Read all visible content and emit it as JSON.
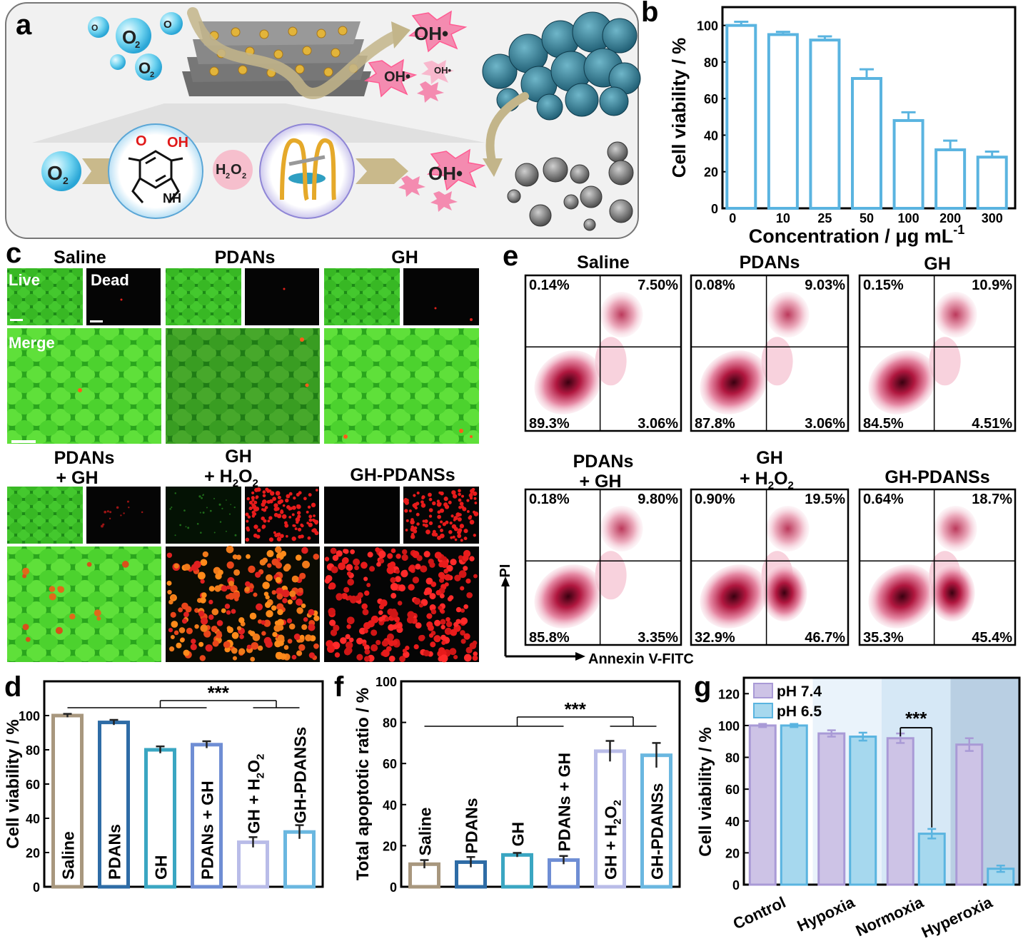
{
  "panels": {
    "a": {
      "letter": "a",
      "labels": {
        "o2": "O",
        "o2_sub": "2",
        "oh": "OH•",
        "h2o2_h": "H",
        "h2o2_sub1": "2",
        "h2o2_o": "O",
        "h2o2_sub2": "2",
        "oh_group": "OH",
        "o_atom": "O",
        "nh": "NH"
      }
    },
    "c": {
      "letter": "c",
      "groups": [
        "Saline",
        "PDANs",
        "GH",
        "PDANs",
        "+ GH",
        "GH",
        "+ H",
        "2",
        "O",
        "2",
        "GH-PDANSs"
      ],
      "top_groups": [
        "Saline",
        "PDANs",
        "GH"
      ],
      "bottom_groups_line1": [
        "PDANs",
        "GH",
        "GH-PDANSs"
      ],
      "bottom_groups_line2": [
        "+ GH",
        "+ H",
        ""
      ],
      "live_label": "Live",
      "dead_label": "Dead",
      "merge_label": "Merge"
    },
    "e": {
      "letter": "e",
      "plots": [
        {
          "title": "Saline",
          "title2": "",
          "q": [
            "0.14%",
            "7.50%",
            "89.3%",
            "3.06%"
          ]
        },
        {
          "title": "PDANs",
          "title2": "",
          "q": [
            "0.08%",
            "9.03%",
            "87.8%",
            "3.06%"
          ]
        },
        {
          "title": "GH",
          "title2": "",
          "q": [
            "0.15%",
            "10.9%",
            "84.5%",
            "4.51%"
          ]
        },
        {
          "title": "PDANs",
          "title2": "+ GH",
          "q": [
            "0.18%",
            "9.80%",
            "85.8%",
            "3.35%"
          ]
        },
        {
          "title": "GH",
          "title2": "+ H",
          "q": [
            "0.90%",
            "19.5%",
            "32.9%",
            "46.7%"
          ]
        },
        {
          "title": "GH-PDANSs",
          "title2": "",
          "q": [
            "0.64%",
            "18.7%",
            "35.3%",
            "45.4%"
          ]
        }
      ],
      "axis_y": "PI",
      "axis_x": "Annexin V-FITC"
    }
  },
  "chart_data": [
    {
      "panel": "b",
      "type": "bar",
      "letter": "b",
      "categories": [
        "0",
        "10",
        "25",
        "50",
        "100",
        "200",
        "300"
      ],
      "values": [
        100,
        95,
        92,
        71,
        48,
        32,
        28
      ],
      "errors": [
        2,
        1.5,
        2,
        5,
        4.5,
        5,
        3
      ],
      "xlabel": "Concentration / μg mL",
      "xlabel_sup": "-1",
      "ylabel": "Cell viability / %",
      "ylim": [
        0,
        110
      ],
      "yticks": [
        "0",
        "20",
        "40",
        "60",
        "80",
        "100"
      ],
      "color": "#5ab4e0"
    },
    {
      "panel": "d",
      "type": "bar",
      "letter": "d",
      "categories": [
        "Saline",
        "PDANs",
        "GH",
        "PDANs + GH",
        "GH + H2O2",
        "GH-PDANSs"
      ],
      "labels": [
        "Saline",
        "PDANs",
        "GH",
        "PDANs + GH",
        "GH + H",
        "GH-PDANSs"
      ],
      "values": [
        100,
        96,
        80,
        83,
        26,
        32
      ],
      "errors": [
        1,
        1.5,
        2,
        2,
        3,
        4
      ],
      "colors": [
        "#a8977e",
        "#2e6ca6",
        "#3aa6c2",
        "#6f8ed4",
        "#b9bce8",
        "#6ab7e0"
      ],
      "ylabel": "Cell viability / %",
      "ylim": [
        0,
        120
      ],
      "yticks": [
        "0",
        "20",
        "40",
        "60",
        "80",
        "100"
      ],
      "significance": "***"
    },
    {
      "panel": "f",
      "type": "bar",
      "letter": "f",
      "categories": [
        "Saline",
        "PDANs",
        "GH",
        "PDANs + GH",
        "GH + H2O2",
        "GH-PDANSs"
      ],
      "labels": [
        "Saline",
        "PDANs",
        "GH",
        "PDANs + GH",
        "GH + H",
        "GH-PDANSs"
      ],
      "values": [
        11,
        12,
        15.5,
        13,
        66,
        64
      ],
      "errors": [
        2,
        2.5,
        1,
        2,
        5,
        6
      ],
      "colors": [
        "#a8977e",
        "#2e6ca6",
        "#3aa6c2",
        "#6f8ed4",
        "#b9bce8",
        "#6ab7e0"
      ],
      "ylabel": "Total apoptotic ratio / %",
      "ylim": [
        0,
        100
      ],
      "yticks": [
        "0",
        "20",
        "40",
        "60",
        "80",
        "100"
      ],
      "significance": "***"
    },
    {
      "panel": "g",
      "type": "bar",
      "letter": "g",
      "categories": [
        "Control",
        "Hypoxia",
        "Normoxia",
        "Hyperoxia"
      ],
      "series": [
        {
          "name": "pH 7.4",
          "values": [
            100,
            95,
            92,
            88
          ],
          "errors": [
            1,
            2,
            3,
            4
          ],
          "color": "#cdc3e6",
          "stroke": "#a99ad6"
        },
        {
          "name": "pH 6.5",
          "values": [
            100,
            93,
            32,
            10
          ],
          "errors": [
            1,
            2.5,
            3,
            2
          ],
          "color": "#a6d8ee",
          "stroke": "#5ab4e0"
        }
      ],
      "ylabel": "Cell viability / %",
      "ylim": [
        0,
        130
      ],
      "yticks": [
        "0",
        "20",
        "40",
        "60",
        "80",
        "100",
        "120"
      ],
      "background_colors": [
        "#ffffff",
        "#eaf3fb",
        "#d6e8f6",
        "#b9cfe3"
      ],
      "significance": "***"
    }
  ]
}
